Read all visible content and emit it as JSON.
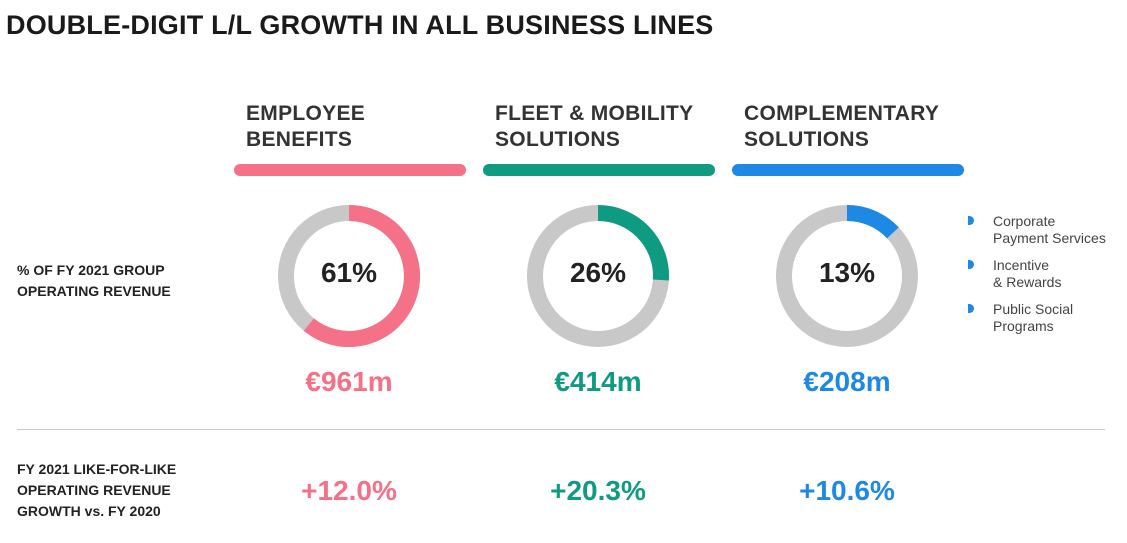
{
  "title": "DOUBLE-DIGIT L/L GROWTH IN ALL BUSINESS LINES",
  "row_labels": {
    "share": [
      "% OF FY 2021 GROUP",
      "OPERATING REVENUE"
    ],
    "growth": [
      "FY 2021 LIKE-FOR-LIKE",
      "OPERATING REVENUE",
      "GROWTH vs. FY 2020"
    ]
  },
  "columns": [
    {
      "header": [
        "EMPLOYEE",
        "BENEFITS"
      ],
      "share": "61%",
      "amount": "€961m",
      "growth": "+12.0%",
      "color": "#f47187"
    },
    {
      "header": [
        "FLEET & MOBILITY",
        "SOLUTIONS"
      ],
      "share": "26%",
      "amount": "€414m",
      "growth": "+20.3%",
      "color": "#0f9b82"
    },
    {
      "header": [
        "COMPLEMENTARY",
        "SOLUTIONS"
      ],
      "share": "13%",
      "amount": "€208m",
      "growth": "+10.6%",
      "color": "#1e88e5"
    }
  ],
  "legend": [
    [
      "Corporate",
      "Payment Services"
    ],
    [
      "Incentive",
      "& Rewards"
    ],
    [
      "Public Social",
      "Programs"
    ]
  ],
  "chart_data": {
    "type": "pie",
    "categories": [
      "EMPLOYEE BENEFITS",
      "FLEET & MOBILITY SOLUTIONS",
      "COMPLEMENTARY SOLUTIONS"
    ],
    "values": [
      61,
      26,
      13
    ],
    "remainder_color": "#c8c8c8"
  }
}
